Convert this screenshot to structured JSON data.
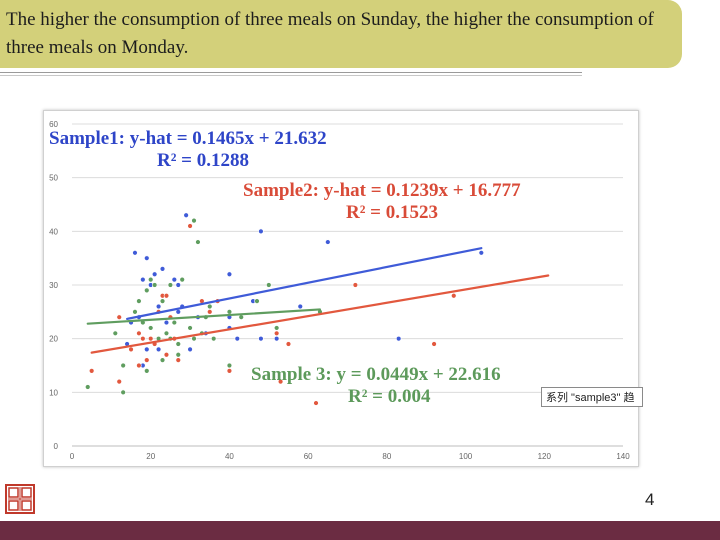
{
  "slide": {
    "title": "The higher the consumption of three meals on Sunday, the higher the consumption of three meals on Monday.",
    "page_number": "4"
  },
  "tooltip": {
    "text": "系列 \"sample3\" 趋"
  },
  "equations": {
    "sample1": {
      "line": "Sample1: y-hat = 0.1465x + 21.632",
      "r2": "R² = 0.1288"
    },
    "sample2": {
      "line": "Sample2: y-hat = 0.1239x + 16.777",
      "r2": "R² = 0.1523"
    },
    "sample3": {
      "line": "Sample 3: y = 0.0449x + 22.616",
      "r2": "R² = 0.004"
    }
  },
  "colors": {
    "sample1": "#3f5bd8",
    "sample2": "#e2583e",
    "sample3": "#5f9d5f",
    "accent_bar": "#d3d07a",
    "footer": "#6b2c42"
  },
  "chart_data": {
    "type": "scatter",
    "xlim": [
      0,
      140
    ],
    "ylim": [
      0,
      60
    ],
    "x_ticks": [
      "0",
      "20",
      "40",
      "60",
      "80",
      "100",
      "120",
      "140"
    ],
    "y_ticks": [
      "0",
      "10",
      "20",
      "30",
      "40",
      "50",
      "60"
    ],
    "grid": "horizontal",
    "series": [
      {
        "name": "sample1",
        "color": "#3f5bd8",
        "trend": {
          "slope": 0.1465,
          "intercept": 21.632,
          "x_range": [
            14,
            104
          ]
        },
        "points": [
          [
            15,
            23
          ],
          [
            17,
            24
          ],
          [
            18,
            31
          ],
          [
            19,
            29
          ],
          [
            19,
            18
          ],
          [
            20,
            22
          ],
          [
            21,
            32
          ],
          [
            22,
            26
          ],
          [
            23,
            33
          ],
          [
            24,
            23
          ],
          [
            25,
            20
          ],
          [
            26,
            31
          ],
          [
            27,
            25
          ],
          [
            27,
            30
          ],
          [
            28,
            26
          ],
          [
            30,
            18
          ],
          [
            32,
            24
          ],
          [
            34,
            21
          ],
          [
            35,
            26
          ],
          [
            40,
            24
          ],
          [
            40,
            22
          ],
          [
            40,
            32
          ],
          [
            42,
            20
          ],
          [
            46,
            27
          ],
          [
            48,
            20
          ],
          [
            48,
            40
          ],
          [
            52,
            20
          ],
          [
            58,
            26
          ],
          [
            65,
            38
          ],
          [
            83,
            20
          ],
          [
            104,
            36
          ],
          [
            14,
            19
          ],
          [
            19,
            35
          ],
          [
            18,
            15
          ],
          [
            16,
            36
          ],
          [
            29,
            43
          ],
          [
            20,
            30
          ],
          [
            22,
            18
          ],
          [
            23,
            16
          ]
        ]
      },
      {
        "name": "sample2",
        "color": "#e2583e",
        "trend": {
          "slope": 0.1239,
          "intercept": 16.777,
          "x_range": [
            5,
            121
          ]
        },
        "points": [
          [
            5,
            14
          ],
          [
            12,
            12
          ],
          [
            13,
            15
          ],
          [
            15,
            18
          ],
          [
            17,
            21
          ],
          [
            17,
            15
          ],
          [
            18,
            20
          ],
          [
            19,
            16
          ],
          [
            20,
            20
          ],
          [
            21,
            19
          ],
          [
            22,
            25
          ],
          [
            23,
            28
          ],
          [
            24,
            28
          ],
          [
            24,
            17
          ],
          [
            25,
            24
          ],
          [
            26,
            20
          ],
          [
            27,
            16
          ],
          [
            28,
            31
          ],
          [
            30,
            41
          ],
          [
            30,
            22
          ],
          [
            33,
            27
          ],
          [
            35,
            25
          ],
          [
            37,
            27
          ],
          [
            40,
            14
          ],
          [
            52,
            21
          ],
          [
            53,
            12
          ],
          [
            55,
            19
          ],
          [
            62,
            8
          ],
          [
            72,
            30
          ],
          [
            92,
            19
          ],
          [
            97,
            28
          ],
          [
            12,
            24
          ]
        ]
      },
      {
        "name": "sample3",
        "color": "#5f9d5f",
        "trend": {
          "slope": 0.0449,
          "intercept": 22.616,
          "x_range": [
            4,
            63
          ]
        },
        "points": [
          [
            4,
            11
          ],
          [
            11,
            21
          ],
          [
            13,
            15
          ],
          [
            16,
            25
          ],
          [
            17,
            27
          ],
          [
            18,
            23
          ],
          [
            19,
            29
          ],
          [
            20,
            31
          ],
          [
            20,
            22
          ],
          [
            21,
            30
          ],
          [
            22,
            20
          ],
          [
            23,
            27
          ],
          [
            23,
            16
          ],
          [
            24,
            21
          ],
          [
            25,
            30
          ],
          [
            25,
            20
          ],
          [
            26,
            23
          ],
          [
            27,
            19
          ],
          [
            27,
            17
          ],
          [
            28,
            31
          ],
          [
            30,
            22
          ],
          [
            31,
            20
          ],
          [
            31,
            42
          ],
          [
            32,
            38
          ],
          [
            33,
            21
          ],
          [
            34,
            24
          ],
          [
            35,
            26
          ],
          [
            36,
            20
          ],
          [
            40,
            15
          ],
          [
            40,
            25
          ],
          [
            43,
            24
          ],
          [
            47,
            27
          ],
          [
            50,
            30
          ],
          [
            52,
            22
          ],
          [
            63,
            25
          ],
          [
            13,
            10
          ],
          [
            19,
            14
          ]
        ]
      }
    ]
  }
}
